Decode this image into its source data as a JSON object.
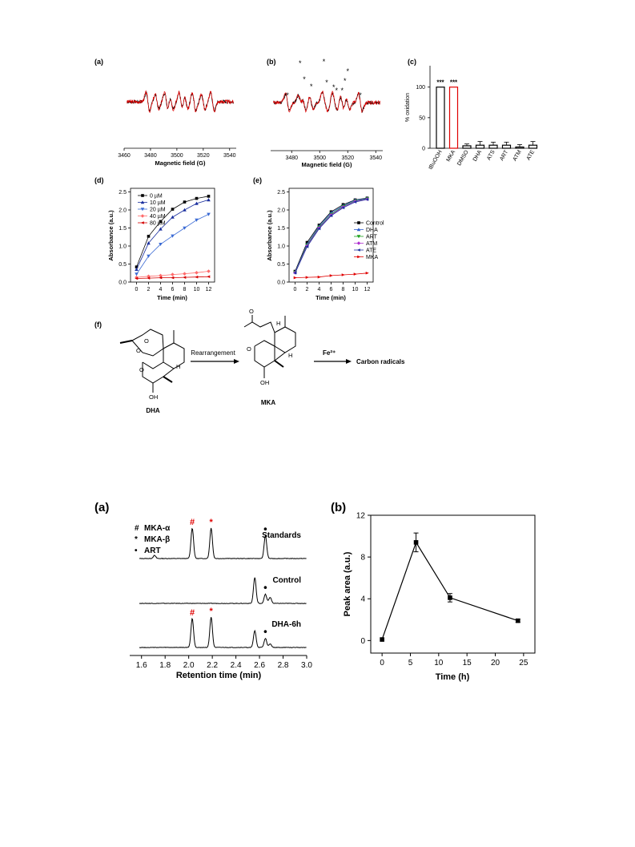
{
  "figure1": {
    "a": {
      "panel_label": "(a)",
      "xlabel": "Magnetic field (G)",
      "xlim": [
        3460,
        3545
      ],
      "xticks": [
        3460,
        3480,
        3500,
        3520,
        3540
      ],
      "series_colors": [
        "#000000",
        "#e00000"
      ]
    },
    "b": {
      "panel_label": "(b)",
      "xlabel": "Magnetic field (G)",
      "xlim": [
        3465,
        3545
      ],
      "xticks": [
        3480,
        3500,
        3520,
        3540
      ],
      "series_colors": [
        "#000000",
        "#e00000"
      ],
      "star_marks": [
        3477,
        3486,
        3489,
        3494,
        3503,
        3505,
        3510,
        3512,
        3516,
        3518,
        3520,
        3529
      ]
    },
    "c": {
      "panel_label": "(c)",
      "ylabel": "% oxidation",
      "ylim": [
        0,
        135
      ],
      "yticks": [
        0,
        50,
        100
      ],
      "categories": [
        "tBuOOH",
        "MKA",
        "DMSO",
        "DHA",
        "ATS",
        "ART",
        "ATM",
        "ATE"
      ],
      "values": [
        100,
        100,
        4,
        5,
        5,
        5,
        2,
        5
      ],
      "errors": [
        0,
        0,
        3,
        6,
        5,
        5,
        4,
        6
      ],
      "bar_colors": [
        "#000000",
        "#e00000",
        "#000000",
        "#000000",
        "#000000",
        "#000000",
        "#000000",
        "#000000"
      ],
      "significance": [
        "***",
        "***",
        "",
        "",
        "",
        "",
        "",
        ""
      ]
    },
    "d": {
      "panel_label": "(d)",
      "xlabel": "Time (min)",
      "ylabel": "Absorbance (a.u.)",
      "xlim": [
        -1,
        13
      ],
      "ylim": [
        0,
        2.6
      ],
      "xticks": [
        0,
        2,
        4,
        6,
        8,
        10,
        12
      ],
      "yticks": [
        0.0,
        0.5,
        1.0,
        1.5,
        2.0,
        2.5
      ],
      "x": [
        0,
        2,
        4,
        6,
        8,
        10,
        12
      ],
      "series": [
        {
          "name": "0 µM",
          "color": "#000000",
          "values": [
            0.42,
            1.27,
            1.68,
            2.02,
            2.22,
            2.32,
            2.38
          ]
        },
        {
          "name": "10 µM",
          "color": "#1a2f9e",
          "values": [
            0.35,
            1.08,
            1.47,
            1.8,
            2.0,
            2.18,
            2.28
          ]
        },
        {
          "name": "20 µM",
          "color": "#3a6ad4",
          "values": [
            0.22,
            0.72,
            1.05,
            1.28,
            1.5,
            1.72,
            1.88
          ]
        },
        {
          "name": "40 µM",
          "color": "#ff6b6b",
          "values": [
            0.13,
            0.16,
            0.18,
            0.21,
            0.23,
            0.26,
            0.3
          ]
        },
        {
          "name": "80 µM",
          "color": "#d40000",
          "values": [
            0.1,
            0.11,
            0.12,
            0.12,
            0.13,
            0.14,
            0.15
          ]
        }
      ]
    },
    "e": {
      "panel_label": "(e)",
      "xlabel": "Time (min)",
      "ylabel": "Absorbance (a.u.)",
      "xlim": [
        -1,
        13
      ],
      "ylim": [
        0,
        2.6
      ],
      "xticks": [
        0,
        2,
        4,
        6,
        8,
        10,
        12
      ],
      "yticks": [
        0.0,
        0.5,
        1.0,
        1.5,
        2.0,
        2.5
      ],
      "x": [
        0,
        2,
        4,
        6,
        8,
        10,
        12
      ],
      "series": [
        {
          "name": "Control",
          "color": "#000000",
          "values": [
            0.3,
            1.1,
            1.58,
            1.95,
            2.15,
            2.28,
            2.33
          ]
        },
        {
          "name": "DHA",
          "color": "#2f5fd0",
          "values": [
            0.28,
            1.05,
            1.55,
            1.92,
            2.12,
            2.27,
            2.32
          ]
        },
        {
          "name": "ART",
          "color": "#1aa01a",
          "values": [
            0.27,
            1.02,
            1.52,
            1.88,
            2.1,
            2.25,
            2.31
          ]
        },
        {
          "name": "ATM",
          "color": "#b030d0",
          "values": [
            0.26,
            1.0,
            1.5,
            1.86,
            2.08,
            2.24,
            2.3
          ]
        },
        {
          "name": "ATE",
          "color": "#1a2f9e",
          "values": [
            0.25,
            0.98,
            1.48,
            1.84,
            2.06,
            2.22,
            2.29
          ]
        },
        {
          "name": "MKA",
          "color": "#e00000",
          "values": [
            0.12,
            0.13,
            0.14,
            0.18,
            0.2,
            0.22,
            0.25
          ]
        }
      ]
    },
    "f": {
      "panel_label": "(f)",
      "arrow1_label": "Rearrangement",
      "arrow2_label": "Fe²⁺",
      "product_label": "Carbon radicals",
      "mol1_name": "DHA",
      "mol2_name": "MKA",
      "atom_O": "O",
      "atom_OH": "OH",
      "atom_H": "H"
    }
  },
  "figure2": {
    "a": {
      "panel_label": "(a)",
      "xlabel": "Retention time (min)",
      "xlim": [
        1.5,
        3.0
      ],
      "xticks": [
        "1.6",
        "1.8",
        "2.0",
        "2.2",
        "2.4",
        "2.6",
        "2.8",
        "3.0"
      ],
      "legend": [
        {
          "symbol": "#",
          "label": "MKA-α"
        },
        {
          "symbol": "*",
          "label": "MKA-β"
        },
        {
          "symbol": "•",
          "label": "ART"
        }
      ],
      "traces": [
        {
          "label": "Standards",
          "peaks": [
            [
              1.71,
              0.1
            ],
            [
              2.03,
              1.0
            ],
            [
              2.19,
              1.0
            ],
            [
              2.65,
              0.75
            ]
          ]
        },
        {
          "label": "Control",
          "peaks": [
            [
              2.56,
              0.85
            ],
            [
              2.65,
              0.3
            ],
            [
              2.69,
              0.2
            ]
          ]
        },
        {
          "label": "DHA-6h",
          "peaks": [
            [
              2.03,
              0.95
            ],
            [
              2.19,
              1.0
            ],
            [
              2.56,
              0.55
            ],
            [
              2.65,
              0.3
            ],
            [
              2.69,
              0.12
            ]
          ]
        }
      ]
    },
    "b": {
      "panel_label": "(b)",
      "xlabel": "Time (h)",
      "ylabel": "Peak area (a.u.)",
      "xlim": [
        -2,
        27
      ],
      "ylim": [
        -1.2,
        12
      ],
      "xticks": [
        0,
        5,
        10,
        15,
        20,
        25
      ],
      "yticks": [
        0,
        4,
        8,
        12
      ],
      "x": [
        0,
        6,
        12,
        24
      ],
      "values": [
        0.1,
        9.4,
        4.1,
        1.9
      ],
      "errors": [
        0.05,
        0.9,
        0.4,
        0.15
      ]
    }
  }
}
